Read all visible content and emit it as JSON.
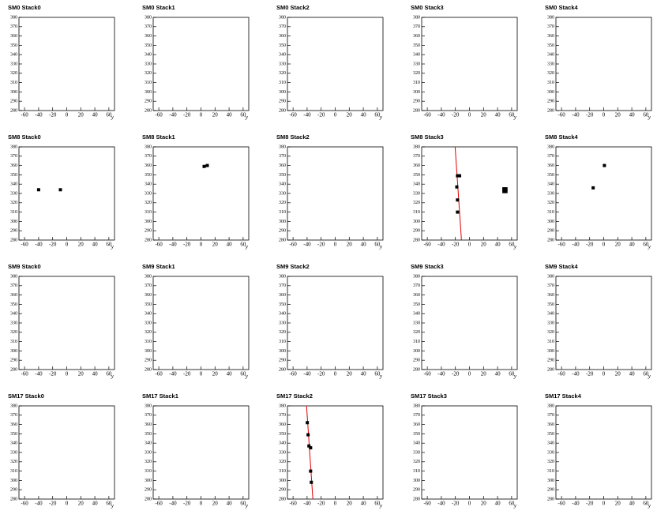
{
  "chart_data": [
    {
      "type": "scatter",
      "title": "SM0 Stack0",
      "x_label": "y",
      "xlim": [
        -68,
        68
      ],
      "ylim": [
        280,
        380
      ],
      "xticks": [
        -60,
        -40,
        -20,
        0,
        20,
        40,
        60
      ],
      "yticks": [
        280,
        290,
        300,
        310,
        320,
        330,
        340,
        350,
        360,
        370,
        380
      ],
      "series": []
    },
    {
      "type": "scatter",
      "title": "SM0 Stack1",
      "x_label": "y",
      "xlim": [
        -68,
        68
      ],
      "ylim": [
        280,
        380
      ],
      "xticks": [
        -60,
        -40,
        -20,
        0,
        20,
        40,
        60
      ],
      "yticks": [
        280,
        290,
        300,
        310,
        320,
        330,
        340,
        350,
        360,
        370,
        380
      ],
      "series": []
    },
    {
      "type": "scatter",
      "title": "SM0 Stack2",
      "x_label": "y",
      "xlim": [
        -68,
        68
      ],
      "ylim": [
        280,
        380
      ],
      "xticks": [
        -60,
        -40,
        -20,
        0,
        20,
        40,
        60
      ],
      "yticks": [
        280,
        290,
        300,
        310,
        320,
        330,
        340,
        350,
        360,
        370,
        380
      ],
      "series": []
    },
    {
      "type": "scatter",
      "title": "SM0 Stack3",
      "x_label": "y",
      "xlim": [
        -68,
        68
      ],
      "ylim": [
        280,
        380
      ],
      "xticks": [
        -60,
        -40,
        -20,
        0,
        20,
        40,
        60
      ],
      "yticks": [
        280,
        290,
        300,
        310,
        320,
        330,
        340,
        350,
        360,
        370,
        380
      ],
      "series": []
    },
    {
      "type": "scatter",
      "title": "SM0 Stack4",
      "x_label": "y",
      "xlim": [
        -68,
        68
      ],
      "ylim": [
        280,
        380
      ],
      "xticks": [
        -60,
        -40,
        -20,
        0,
        20,
        40,
        60
      ],
      "yticks": [
        280,
        290,
        300,
        310,
        320,
        330,
        340,
        350,
        360,
        370,
        380
      ],
      "series": []
    },
    {
      "type": "scatter",
      "title": "SM8 Stack0",
      "x_label": "y",
      "xlim": [
        -68,
        68
      ],
      "ylim": [
        280,
        380
      ],
      "xticks": [
        -60,
        -40,
        -20,
        0,
        20,
        40,
        60
      ],
      "yticks": [
        280,
        290,
        300,
        310,
        320,
        330,
        340,
        350,
        360,
        370,
        380
      ],
      "series": [
        {
          "style": "markers",
          "color": "#000000",
          "x": [
            -40,
            -9
          ],
          "values": [
            334,
            334
          ]
        }
      ]
    },
    {
      "type": "scatter",
      "title": "SM8 Stack1",
      "x_label": "y",
      "xlim": [
        -68,
        68
      ],
      "ylim": [
        280,
        380
      ],
      "xticks": [
        -60,
        -40,
        -20,
        0,
        20,
        40,
        60
      ],
      "yticks": [
        280,
        290,
        300,
        310,
        320,
        330,
        340,
        350,
        360,
        370,
        380
      ],
      "series": [
        {
          "style": "markers",
          "color": "#000000",
          "x": [
            4.5,
            9
          ],
          "values": [
            359,
            360
          ]
        }
      ]
    },
    {
      "type": "scatter",
      "title": "SM8 Stack2",
      "x_label": "y",
      "xlim": [
        -68,
        68
      ],
      "ylim": [
        280,
        380
      ],
      "xticks": [
        -60,
        -40,
        -20,
        0,
        20,
        40,
        60
      ],
      "yticks": [
        280,
        290,
        300,
        310,
        320,
        330,
        340,
        350,
        360,
        370,
        380
      ],
      "series": []
    },
    {
      "type": "scatter",
      "title": "SM8 Stack3",
      "x_label": "y",
      "xlim": [
        -68,
        68
      ],
      "ylim": [
        280,
        380
      ],
      "xticks": [
        -60,
        -40,
        -20,
        0,
        20,
        40,
        60
      ],
      "yticks": [
        280,
        290,
        300,
        310,
        320,
        330,
        340,
        350,
        360,
        370,
        380
      ],
      "series": [
        {
          "style": "line",
          "color": "#e00000",
          "x": [
            -20.4,
            -11.4
          ],
          "values": [
            380,
            280
          ]
        },
        {
          "style": "markers",
          "color": "#000000",
          "x": [
            -17,
            -14,
            -18,
            -17,
            -17,
            49,
            49,
            52,
            52
          ],
          "values": [
            349,
            349,
            337,
            323,
            310,
            335,
            332,
            335,
            332
          ]
        }
      ]
    },
    {
      "type": "scatter",
      "title": "SM8 Stack4",
      "x_label": "y",
      "xlim": [
        -68,
        68
      ],
      "ylim": [
        280,
        380
      ],
      "xticks": [
        -60,
        -40,
        -20,
        0,
        20,
        40,
        60
      ],
      "yticks": [
        280,
        290,
        300,
        310,
        320,
        330,
        340,
        350,
        360,
        370,
        380
      ],
      "series": [
        {
          "style": "markers",
          "color": "#000000",
          "x": [
            1,
            -15
          ],
          "values": [
            360,
            336
          ]
        }
      ]
    },
    {
      "type": "scatter",
      "title": "SM9 Stack0",
      "x_label": "y",
      "xlim": [
        -68,
        68
      ],
      "ylim": [
        280,
        380
      ],
      "xticks": [
        -60,
        -40,
        -20,
        0,
        20,
        40,
        60
      ],
      "yticks": [
        280,
        290,
        300,
        310,
        320,
        330,
        340,
        350,
        360,
        370,
        380
      ],
      "series": []
    },
    {
      "type": "scatter",
      "title": "SM9 Stack1",
      "x_label": "y",
      "xlim": [
        -68,
        68
      ],
      "ylim": [
        280,
        380
      ],
      "xticks": [
        -60,
        -40,
        -20,
        0,
        20,
        40,
        60
      ],
      "yticks": [
        280,
        290,
        300,
        310,
        320,
        330,
        340,
        350,
        360,
        370,
        380
      ],
      "series": []
    },
    {
      "type": "scatter",
      "title": "SM9 Stack2",
      "x_label": "y",
      "xlim": [
        -68,
        68
      ],
      "ylim": [
        280,
        380
      ],
      "xticks": [
        -60,
        -40,
        -20,
        0,
        20,
        40,
        60
      ],
      "yticks": [
        280,
        290,
        300,
        310,
        320,
        330,
        340,
        350,
        360,
        370,
        380
      ],
      "series": []
    },
    {
      "type": "scatter",
      "title": "SM9 Stack3",
      "x_label": "y",
      "xlim": [
        -68,
        68
      ],
      "ylim": [
        280,
        380
      ],
      "xticks": [
        -60,
        -40,
        -20,
        0,
        20,
        40,
        60
      ],
      "yticks": [
        280,
        290,
        300,
        310,
        320,
        330,
        340,
        350,
        360,
        370,
        380
      ],
      "series": []
    },
    {
      "type": "scatter",
      "title": "SM9 Stack4",
      "x_label": "y",
      "xlim": [
        -68,
        68
      ],
      "ylim": [
        280,
        380
      ],
      "xticks": [
        -60,
        -40,
        -20,
        0,
        20,
        40,
        60
      ],
      "yticks": [
        280,
        290,
        300,
        310,
        320,
        330,
        340,
        350,
        360,
        370,
        380
      ],
      "series": []
    },
    {
      "type": "scatter",
      "title": "SM17 Stack0",
      "x_label": "y",
      "xlim": [
        -68,
        68
      ],
      "ylim": [
        280,
        380
      ],
      "xticks": [
        -60,
        -40,
        -20,
        0,
        20,
        40,
        60
      ],
      "yticks": [
        280,
        290,
        300,
        310,
        320,
        330,
        340,
        350,
        360,
        370,
        380
      ],
      "series": []
    },
    {
      "type": "scatter",
      "title": "SM17 Stack1",
      "x_label": "y",
      "xlim": [
        -68,
        68
      ],
      "ylim": [
        280,
        380
      ],
      "xticks": [
        -60,
        -40,
        -20,
        0,
        20,
        40,
        60
      ],
      "yticks": [
        280,
        290,
        300,
        310,
        320,
        330,
        340,
        350,
        360,
        370,
        380
      ],
      "series": []
    },
    {
      "type": "scatter",
      "title": "SM17 Stack2",
      "x_label": "y",
      "xlim": [
        -68,
        68
      ],
      "ylim": [
        280,
        380
      ],
      "xticks": [
        -60,
        -40,
        -20,
        0,
        20,
        40,
        60
      ],
      "yticks": [
        280,
        290,
        300,
        310,
        320,
        330,
        340,
        350,
        360,
        370,
        380
      ],
      "series": [
        {
          "style": "line",
          "color": "#e00000",
          "x": [
            -40.8,
            -31.8
          ],
          "values": [
            380,
            280
          ]
        },
        {
          "style": "markers",
          "color": "#000000",
          "x": [
            -39.7,
            -38.6,
            -37.4,
            -35,
            -35,
            -34
          ],
          "values": [
            362,
            349,
            337,
            335,
            310,
            298
          ]
        }
      ]
    },
    {
      "type": "scatter",
      "title": "SM17 Stack3",
      "x_label": "y",
      "xlim": [
        -68,
        68
      ],
      "ylim": [
        280,
        380
      ],
      "xticks": [
        -60,
        -40,
        -20,
        0,
        20,
        40,
        60
      ],
      "yticks": [
        280,
        290,
        300,
        310,
        320,
        330,
        340,
        350,
        360,
        370,
        380
      ],
      "series": []
    },
    {
      "type": "scatter",
      "title": "SM17 Stack4",
      "x_label": "y",
      "xlim": [
        -68,
        68
      ],
      "ylim": [
        280,
        380
      ],
      "xticks": [
        -60,
        -40,
        -20,
        0,
        20,
        40,
        60
      ],
      "yticks": [
        280,
        290,
        300,
        310,
        320,
        330,
        340,
        350,
        360,
        370,
        380
      ],
      "series": []
    }
  ]
}
